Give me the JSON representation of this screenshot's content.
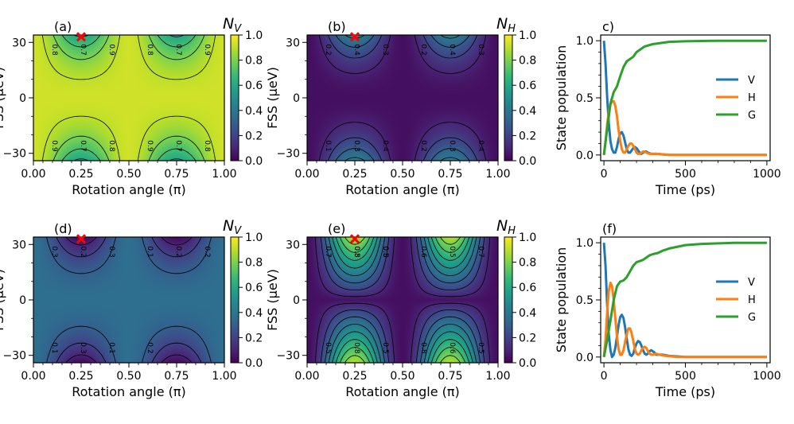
{
  "colors": {
    "viridis_stops": [
      "#440154",
      "#482878",
      "#3e4989",
      "#31688e",
      "#26828e",
      "#1f9e89",
      "#35b779",
      "#6ece58",
      "#b5de2b",
      "#fde725"
    ],
    "V": "#1f77b4",
    "H": "#ff7f0e",
    "G": "#2ca02c",
    "marker": "#ff0000"
  },
  "chart_data": [
    {
      "id": "a",
      "type": "heatmap",
      "panel_label": "(a)",
      "xlabel": "Rotation angle (π)",
      "ylabel": "FSS (μeV)",
      "xticks": [
        "0.00",
        "0.25",
        "0.50",
        "0.75",
        "1.00"
      ],
      "yticks": [
        "−30",
        "0",
        "30"
      ],
      "xlim": [
        0,
        1
      ],
      "ylim": [
        -34,
        34
      ],
      "colorbar_title": "N",
      "colorbar_subscript": "V",
      "colorbar_ticks": [
        "0.0",
        "0.2",
        "0.4",
        "0.6",
        "0.8",
        "1.0"
      ],
      "vlim": [
        0,
        1
      ],
      "field": "A",
      "levels": [
        0.6,
        0.7,
        0.8,
        0.9
      ],
      "contour_labels": [
        "0.8",
        "0.7",
        "0.9",
        "0.8",
        "0.7",
        "0.9",
        "0.9",
        "0.7",
        "0.8",
        "0.9",
        "0.7",
        "0.8"
      ],
      "marker": {
        "x": 0.25,
        "y": 33,
        "symbol": "x"
      }
    },
    {
      "id": "b",
      "type": "heatmap",
      "panel_label": "(b)",
      "xlabel": "Rotation angle (π)",
      "ylabel": "FSS (μeV)",
      "xticks": [
        "0.00",
        "0.25",
        "0.50",
        "0.75",
        "1.00"
      ],
      "yticks": [
        "−30",
        "0",
        "30"
      ],
      "xlim": [
        0,
        1
      ],
      "ylim": [
        -34,
        34
      ],
      "colorbar_title": "N",
      "colorbar_subscript": "H",
      "colorbar_ticks": [
        "0.0",
        "0.2",
        "0.4",
        "0.6",
        "0.8",
        "1.0"
      ],
      "vlim": [
        0,
        1
      ],
      "field": "B",
      "levels": [
        0.1,
        0.2,
        0.3,
        0.4
      ],
      "contour_labels": [
        "0.2",
        "0.4",
        "0.3",
        "0.2",
        "0.4",
        "0.3",
        "0.1",
        "0.3",
        "0.4",
        "0.2",
        "0.3",
        "0.4"
      ],
      "marker": {
        "x": 0.25,
        "y": 33,
        "symbol": "x"
      }
    },
    {
      "id": "c",
      "type": "line",
      "panel_label": "c)",
      "xlabel": "Time (ps)",
      "ylabel": "State population",
      "xticks": [
        "0",
        "500",
        "1000"
      ],
      "yticks": [
        "0.0",
        "0.5",
        "1.0"
      ],
      "xlim": [
        -20,
        1020
      ],
      "ylim": [
        -0.05,
        1.05
      ],
      "legend_position": "center-right",
      "series": [
        {
          "name": "V",
          "points": [
            [
              0,
              1.0
            ],
            [
              10,
              0.8
            ],
            [
              20,
              0.5
            ],
            [
              30,
              0.28
            ],
            [
              40,
              0.12
            ],
            [
              50,
              0.05
            ],
            [
              60,
              0.02
            ],
            [
              70,
              0.02
            ],
            [
              80,
              0.07
            ],
            [
              90,
              0.14
            ],
            [
              100,
              0.19
            ],
            [
              110,
              0.2
            ],
            [
              120,
              0.17
            ],
            [
              130,
              0.11
            ],
            [
              140,
              0.05
            ],
            [
              150,
              0.02
            ],
            [
              160,
              0.02
            ],
            [
              170,
              0.04
            ],
            [
              180,
              0.06
            ],
            [
              190,
              0.07
            ],
            [
              200,
              0.06
            ],
            [
              210,
              0.04
            ],
            [
              220,
              0.02
            ],
            [
              230,
              0.01
            ],
            [
              240,
              0.02
            ],
            [
              250,
              0.03
            ],
            [
              260,
              0.03
            ],
            [
              270,
              0.02
            ],
            [
              290,
              0.01
            ],
            [
              320,
              0.01
            ],
            [
              400,
              0.0
            ],
            [
              600,
              0.0
            ],
            [
              1000,
              0.0
            ]
          ]
        },
        {
          "name": "H",
          "points": [
            [
              0,
              0.0
            ],
            [
              10,
              0.12
            ],
            [
              20,
              0.27
            ],
            [
              30,
              0.38
            ],
            [
              40,
              0.44
            ],
            [
              50,
              0.47
            ],
            [
              60,
              0.47
            ],
            [
              70,
              0.43
            ],
            [
              80,
              0.34
            ],
            [
              90,
              0.22
            ],
            [
              100,
              0.12
            ],
            [
              110,
              0.05
            ],
            [
              120,
              0.02
            ],
            [
              130,
              0.02
            ],
            [
              140,
              0.05
            ],
            [
              150,
              0.08
            ],
            [
              160,
              0.1
            ],
            [
              170,
              0.1
            ],
            [
              180,
              0.08
            ],
            [
              190,
              0.05
            ],
            [
              200,
              0.02
            ],
            [
              210,
              0.01
            ],
            [
              220,
              0.01
            ],
            [
              230,
              0.02
            ],
            [
              240,
              0.03
            ],
            [
              250,
              0.03
            ],
            [
              260,
              0.02
            ],
            [
              280,
              0.01
            ],
            [
              320,
              0.01
            ],
            [
              400,
              0.0
            ],
            [
              600,
              0.0
            ],
            [
              1000,
              0.0
            ]
          ]
        },
        {
          "name": "G",
          "points": [
            [
              0,
              0.0
            ],
            [
              20,
              0.23
            ],
            [
              40,
              0.45
            ],
            [
              60,
              0.55
            ],
            [
              80,
              0.6
            ],
            [
              100,
              0.69
            ],
            [
              120,
              0.77
            ],
            [
              140,
              0.82
            ],
            [
              160,
              0.84
            ],
            [
              180,
              0.86
            ],
            [
              200,
              0.9
            ],
            [
              250,
              0.95
            ],
            [
              300,
              0.97
            ],
            [
              400,
              0.99
            ],
            [
              500,
              0.995
            ],
            [
              700,
              1.0
            ],
            [
              1000,
              1.0
            ]
          ]
        }
      ]
    },
    {
      "id": "d",
      "type": "heatmap",
      "panel_label": "(d)",
      "xlabel": "Rotation angle (π)",
      "ylabel": "FSS (μeV)",
      "xticks": [
        "0.00",
        "0.25",
        "0.50",
        "0.75",
        "1.00"
      ],
      "yticks": [
        "−30",
        "0",
        "30"
      ],
      "xlim": [
        0,
        1
      ],
      "ylim": [
        -34,
        34
      ],
      "colorbar_title": "N",
      "colorbar_subscript": "V",
      "colorbar_ticks": [
        "0.0",
        "0.2",
        "0.4",
        "0.6",
        "0.8",
        "1.0"
      ],
      "vlim": [
        0,
        1
      ],
      "field": "D",
      "levels": [
        0.1,
        0.2,
        0.3
      ],
      "contour_labels": [
        "0.3",
        "0.2",
        "0.3",
        "0.1",
        "0.2",
        "0.2",
        "0.1",
        "0.3",
        "0.1",
        "0.2"
      ],
      "marker": {
        "x": 0.25,
        "y": 33,
        "symbol": "x"
      }
    },
    {
      "id": "e",
      "type": "heatmap",
      "panel_label": "(e)",
      "xlabel": "Rotation angle (π)",
      "ylabel": "FSS (μeV)",
      "xticks": [
        "0.00",
        "0.25",
        "0.50",
        "0.75",
        "1.00"
      ],
      "yticks": [
        "−30",
        "0",
        "30"
      ],
      "xlim": [
        0,
        1
      ],
      "ylim": [
        -34,
        34
      ],
      "colorbar_title": "N",
      "colorbar_subscript": "H",
      "colorbar_ticks": [
        "0.0",
        "0.2",
        "0.4",
        "0.6",
        "0.8",
        "1.0"
      ],
      "vlim": [
        0,
        1
      ],
      "field": "E",
      "levels": [
        0.1,
        0.2,
        0.3,
        0.4,
        0.5,
        0.6,
        0.7,
        0.8
      ],
      "contour_labels": [
        "0.7",
        "0.5",
        "0.8",
        "0.6",
        "0.5",
        "0.7",
        "0.5",
        "0.8",
        "0.5",
        "0.8",
        "0.6",
        "0.5",
        "0.7",
        "0.8",
        "0.5"
      ],
      "marker": {
        "x": 0.25,
        "y": 33,
        "symbol": "x"
      }
    },
    {
      "id": "f",
      "type": "line",
      "panel_label": "(f)",
      "xlabel": "Time (ps)",
      "ylabel": "State population",
      "xticks": [
        "0",
        "500",
        "1000"
      ],
      "yticks": [
        "0.0",
        "0.5",
        "1.0"
      ],
      "xlim": [
        -20,
        1020
      ],
      "ylim": [
        -0.05,
        1.05
      ],
      "legend_position": "center-right",
      "series": [
        {
          "name": "V",
          "points": [
            [
              0,
              1.0
            ],
            [
              10,
              0.8
            ],
            [
              20,
              0.45
            ],
            [
              30,
              0.2
            ],
            [
              40,
              0.06
            ],
            [
              50,
              0.0
            ],
            [
              60,
              0.02
            ],
            [
              70,
              0.08
            ],
            [
              80,
              0.18
            ],
            [
              90,
              0.28
            ],
            [
              100,
              0.35
            ],
            [
              110,
              0.37
            ],
            [
              120,
              0.34
            ],
            [
              130,
              0.26
            ],
            [
              140,
              0.16
            ],
            [
              150,
              0.07
            ],
            [
              160,
              0.02
            ],
            [
              170,
              0.01
            ],
            [
              180,
              0.03
            ],
            [
              190,
              0.08
            ],
            [
              200,
              0.12
            ],
            [
              210,
              0.14
            ],
            [
              220,
              0.13
            ],
            [
              230,
              0.1
            ],
            [
              240,
              0.06
            ],
            [
              250,
              0.03
            ],
            [
              260,
              0.02
            ],
            [
              270,
              0.03
            ],
            [
              280,
              0.05
            ],
            [
              290,
              0.06
            ],
            [
              300,
              0.05
            ],
            [
              310,
              0.04
            ],
            [
              320,
              0.02
            ],
            [
              340,
              0.02
            ],
            [
              360,
              0.02
            ],
            [
              400,
              0.01
            ],
            [
              500,
              0.0
            ],
            [
              1000,
              0.0
            ]
          ]
        },
        {
          "name": "H",
          "points": [
            [
              0,
              0.0
            ],
            [
              10,
              0.15
            ],
            [
              20,
              0.4
            ],
            [
              30,
              0.58
            ],
            [
              40,
              0.65
            ],
            [
              50,
              0.62
            ],
            [
              60,
              0.5
            ],
            [
              70,
              0.34
            ],
            [
              80,
              0.18
            ],
            [
              90,
              0.07
            ],
            [
              100,
              0.02
            ],
            [
              110,
              0.02
            ],
            [
              120,
              0.06
            ],
            [
              130,
              0.13
            ],
            [
              140,
              0.2
            ],
            [
              150,
              0.25
            ],
            [
              160,
              0.25
            ],
            [
              170,
              0.21
            ],
            [
              180,
              0.14
            ],
            [
              190,
              0.07
            ],
            [
              200,
              0.03
            ],
            [
              210,
              0.02
            ],
            [
              220,
              0.03
            ],
            [
              230,
              0.06
            ],
            [
              240,
              0.08
            ],
            [
              250,
              0.09
            ],
            [
              260,
              0.08
            ],
            [
              270,
              0.05
            ],
            [
              280,
              0.03
            ],
            [
              290,
              0.02
            ],
            [
              300,
              0.02
            ],
            [
              320,
              0.03
            ],
            [
              340,
              0.02
            ],
            [
              380,
              0.01
            ],
            [
              450,
              0.0
            ],
            [
              1000,
              0.0
            ]
          ]
        },
        {
          "name": "G",
          "points": [
            [
              0,
              0.0
            ],
            [
              20,
              0.15
            ],
            [
              40,
              0.32
            ],
            [
              60,
              0.5
            ],
            [
              80,
              0.62
            ],
            [
              100,
              0.66
            ],
            [
              120,
              0.67
            ],
            [
              140,
              0.7
            ],
            [
              160,
              0.75
            ],
            [
              180,
              0.8
            ],
            [
              200,
              0.83
            ],
            [
              220,
              0.84
            ],
            [
              240,
              0.85
            ],
            [
              260,
              0.87
            ],
            [
              280,
              0.89
            ],
            [
              300,
              0.9
            ],
            [
              330,
              0.91
            ],
            [
              360,
              0.93
            ],
            [
              400,
              0.95
            ],
            [
              500,
              0.98
            ],
            [
              600,
              0.99
            ],
            [
              800,
              1.0
            ],
            [
              1000,
              1.0
            ]
          ]
        }
      ]
    }
  ]
}
